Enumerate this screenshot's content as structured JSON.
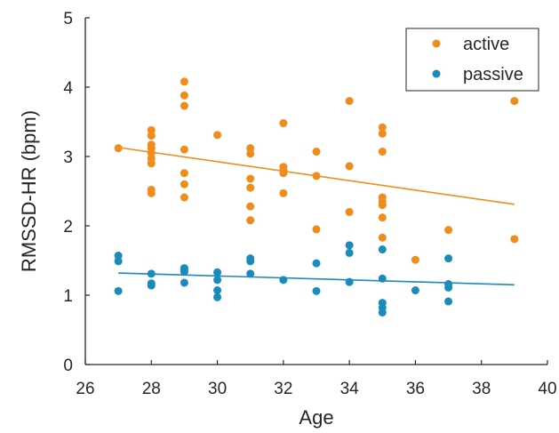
{
  "chart_data": {
    "type": "scatter",
    "xlabel": "Age",
    "ylabel": "RMSSD-HR (bpm)",
    "xlim": [
      26,
      40
    ],
    "ylim": [
      0,
      5
    ],
    "xticks": [
      26,
      28,
      30,
      32,
      34,
      36,
      38,
      40
    ],
    "yticks": [
      0,
      1,
      2,
      3,
      4,
      5
    ],
    "grid": false,
    "legend": "top-right",
    "series": [
      {
        "name": "active",
        "color": "#f08c1c",
        "points": [
          [
            27,
            3.12
          ],
          [
            28,
            3.38
          ],
          [
            28,
            3.3
          ],
          [
            28,
            3.17
          ],
          [
            28,
            3.12
          ],
          [
            28,
            3.05
          ],
          [
            28,
            2.97
          ],
          [
            28,
            2.9
          ],
          [
            28,
            2.52
          ],
          [
            28,
            2.47
          ],
          [
            29,
            4.08
          ],
          [
            29,
            3.88
          ],
          [
            29,
            3.73
          ],
          [
            29,
            3.1
          ],
          [
            29,
            2.76
          ],
          [
            29,
            2.6
          ],
          [
            29,
            2.41
          ],
          [
            30,
            3.31
          ],
          [
            31,
            3.12
          ],
          [
            31,
            3.04
          ],
          [
            31,
            2.68
          ],
          [
            31,
            2.55
          ],
          [
            31,
            2.28
          ],
          [
            31,
            2.08
          ],
          [
            32,
            3.48
          ],
          [
            32,
            2.85
          ],
          [
            32,
            2.8
          ],
          [
            32,
            2.76
          ],
          [
            32,
            2.47
          ],
          [
            33,
            3.07
          ],
          [
            33,
            2.72
          ],
          [
            33,
            1.95
          ],
          [
            34,
            3.8
          ],
          [
            34,
            2.86
          ],
          [
            34,
            2.2
          ],
          [
            35,
            3.42
          ],
          [
            35,
            3.33
          ],
          [
            35,
            3.07
          ],
          [
            35,
            2.41
          ],
          [
            35,
            2.35
          ],
          [
            35,
            2.3
          ],
          [
            35,
            2.12
          ],
          [
            35,
            1.83
          ],
          [
            36,
            1.51
          ],
          [
            37,
            1.94
          ],
          [
            39,
            3.8
          ],
          [
            39,
            1.81
          ]
        ],
        "fit": {
          "x": [
            27,
            39
          ],
          "y": [
            3.13,
            2.31
          ]
        }
      },
      {
        "name": "passive",
        "color": "#1b8bbb",
        "points": [
          [
            27,
            1.57
          ],
          [
            27,
            1.49
          ],
          [
            27,
            1.06
          ],
          [
            28,
            1.31
          ],
          [
            28,
            1.17
          ],
          [
            28,
            1.14
          ],
          [
            29,
            1.39
          ],
          [
            29,
            1.36
          ],
          [
            29,
            1.34
          ],
          [
            29,
            1.18
          ],
          [
            30,
            1.33
          ],
          [
            30,
            1.22
          ],
          [
            30,
            1.07
          ],
          [
            30,
            0.97
          ],
          [
            31,
            1.53
          ],
          [
            31,
            1.49
          ],
          [
            31,
            1.31
          ],
          [
            32,
            1.22
          ],
          [
            33,
            1.46
          ],
          [
            33,
            1.06
          ],
          [
            34,
            1.72
          ],
          [
            34,
            1.61
          ],
          [
            34,
            1.19
          ],
          [
            35,
            1.66
          ],
          [
            35,
            1.24
          ],
          [
            35,
            0.89
          ],
          [
            35,
            0.82
          ],
          [
            35,
            0.75
          ],
          [
            36,
            1.07
          ],
          [
            37,
            1.53
          ],
          [
            37,
            1.16
          ],
          [
            37,
            1.11
          ],
          [
            37,
            0.91
          ]
        ],
        "fit": {
          "x": [
            27,
            39
          ],
          "y": [
            1.32,
            1.15
          ]
        }
      }
    ]
  }
}
